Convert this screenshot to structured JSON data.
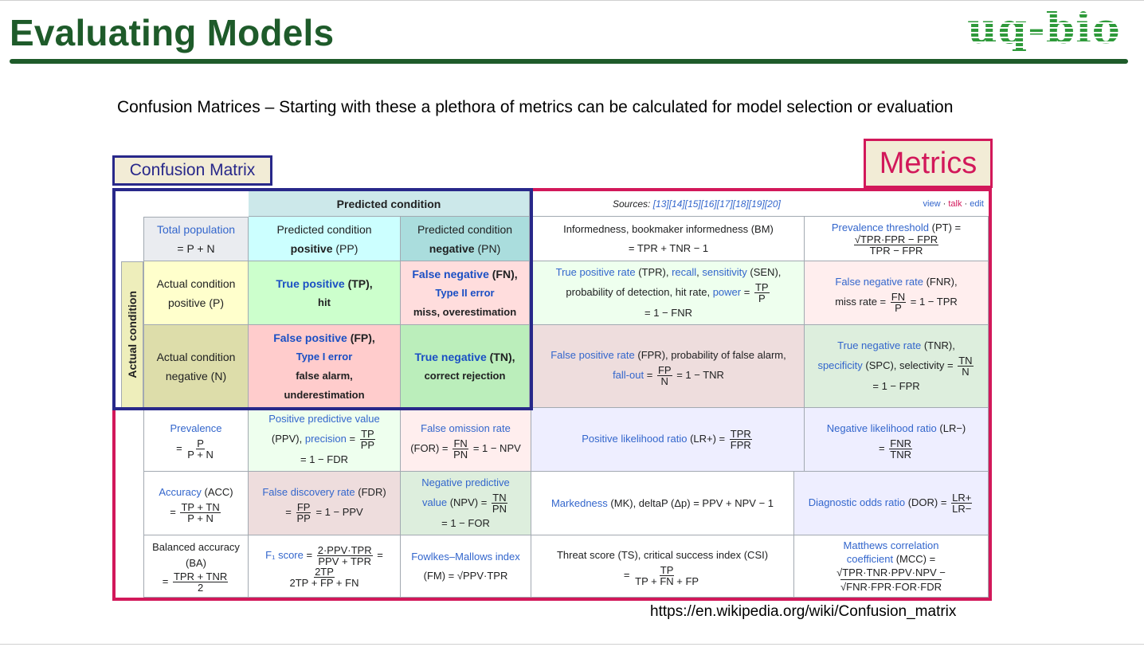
{
  "slide": {
    "title": "Evaluating Models",
    "logo": "uq-bio",
    "intro": "Confusion Matrices – Starting with these a plethora of metrics can be calculated for model selection or evaluation",
    "confusion_label": "Confusion Matrix",
    "metrics_label": "Metrics",
    "url": "https://en.wikipedia.org/wiki/Confusion_matrix"
  },
  "table": {
    "predicted_condition": "Predicted condition",
    "actual_condition": "Actual condition",
    "sources_label": "Sources:",
    "sources_refs": "[13][14][15][16][17][18][19][20]",
    "vte": {
      "view": "view",
      "talk": "talk",
      "edit": "edit"
    },
    "total_population": {
      "link": "Total population",
      "formula": "= P + N"
    },
    "pred_positive": {
      "line1": "Predicted condition",
      "bold": "positive",
      "abbr": "(PP)"
    },
    "pred_negative": {
      "line1": "Predicted condition",
      "bold": "negative",
      "abbr": "(PN)"
    },
    "informedness": {
      "line1": "Informedness, bookmaker informedness (BM)",
      "line2": "= TPR + TNR − 1"
    },
    "prevalence_threshold": {
      "link": "Prevalence threshold",
      "abbr": "(PT) =",
      "num": "√TPR·FPR − FPR",
      "den": "TPR − FPR"
    },
    "actual_positive": {
      "line1": "Actual condition",
      "line2": "positive (P)"
    },
    "actual_negative": {
      "line1": "Actual condition",
      "line2": "negative (N)"
    },
    "tp": {
      "bold": "True positive",
      "abbr": "(TP),",
      "line2": "hit"
    },
    "fn": {
      "bold": "False negative",
      "abbr": "(FN),",
      "link": "Type II error",
      "line3": "miss, overestimation"
    },
    "fp": {
      "bold": "False positive",
      "abbr": "(FP),",
      "link": "Type I error",
      "line3": "false alarm,",
      "line4": "underestimation"
    },
    "tn": {
      "bold": "True negative",
      "abbr": "(TN),",
      "line2": "correct rejection"
    },
    "tpr": {
      "link1": "True positive rate",
      "abbr": "(TPR),",
      "link2": "recall",
      "link3": "sensitivity",
      "abbr2": "(SEN),",
      "line2": "probability of detection, hit rate,",
      "link4": "power",
      "eq": "=",
      "num": "TP",
      "den": "P",
      "line3": "= 1 − FNR"
    },
    "fnr": {
      "link": "False negative rate",
      "abbr": "(FNR),",
      "line2": "miss rate =",
      "num": "FN",
      "den": "P",
      "tail": "= 1 − TPR"
    },
    "fpr": {
      "link1": "False positive rate",
      "abbr": "(FPR), probability of false alarm,",
      "link2": "fall-out",
      "eq": "=",
      "num": "FP",
      "den": "N",
      "tail": "= 1 − TNR"
    },
    "tnr": {
      "link1": "True negative rate",
      "abbr": "(TNR),",
      "link2": "specificity",
      "abbr2": "(SPC), selectivity =",
      "num": "TN",
      "den": "N",
      "line3": "= 1 − FPR"
    },
    "prevalence": {
      "link": "Prevalence",
      "eq": "=",
      "num": "P",
      "den": "P + N"
    },
    "ppv": {
      "link1": "Positive predictive value",
      "abbr": "(PPV),",
      "link2": "precision",
      "eq": "=",
      "num": "TP",
      "den": "PP",
      "line3": "= 1 − FDR"
    },
    "for": {
      "link": "False omission rate",
      "abbr": "(FOR) =",
      "num": "FN",
      "den": "PN",
      "tail": "= 1 − NPV"
    },
    "lrp": {
      "link": "Positive likelihood ratio",
      "abbr": "(LR+) =",
      "num": "TPR",
      "den": "FPR"
    },
    "lrn": {
      "link": "Negative likelihood ratio",
      "abbr": "(LR−)",
      "eq": "=",
      "num": "FNR",
      "den": "TNR"
    },
    "accuracy": {
      "link": "Accuracy",
      "abbr": "(ACC)",
      "eq": "=",
      "num": "TP + TN",
      "den": "P + N"
    },
    "fdr": {
      "link": "False discovery rate",
      "abbr": "(FDR)",
      "eq": "=",
      "num": "FP",
      "den": "PP",
      "tail": "= 1 − PPV"
    },
    "npv": {
      "link1": "Negative predictive",
      "link2": "value",
      "abbr": "(NPV) =",
      "num": "TN",
      "den": "PN",
      "line3": "= 1 − FOR"
    },
    "mk": {
      "link": "Markedness",
      "abbr": "(MK), deltaP (Δp) = PPV + NPV − 1"
    },
    "dor": {
      "link": "Diagnostic odds ratio",
      "abbr": "(DOR) =",
      "num": "LR+",
      "den": "LR−"
    },
    "ba": {
      "line1": "Balanced accuracy",
      "line2": "(BA)",
      "eq": "=",
      "num": "TPR + TNR",
      "den": "2"
    },
    "f1": {
      "link": "F₁ score",
      "eq": "=",
      "num": "2·PPV·TPR",
      "den": "PPV + TPR",
      "eq2": "=",
      "num2": "2TP",
      "den2": "2TP + FP + FN"
    },
    "fm": {
      "link": "Fowlkes–Mallows index",
      "abbr": "(FM) = √PPV·TPR"
    },
    "ts": {
      "line1": "Threat score (TS), critical success index (CSI)",
      "eq": "=",
      "num": "TP",
      "den": "TP + FN + FP"
    },
    "mcc": {
      "link1": "Matthews correlation",
      "link2": "coefficient",
      "abbr": "(MCC) =",
      "line3": "√TPR·TNR·PPV·NPV −",
      "line4": "√FNR·FPR·FOR·FDR"
    }
  }
}
